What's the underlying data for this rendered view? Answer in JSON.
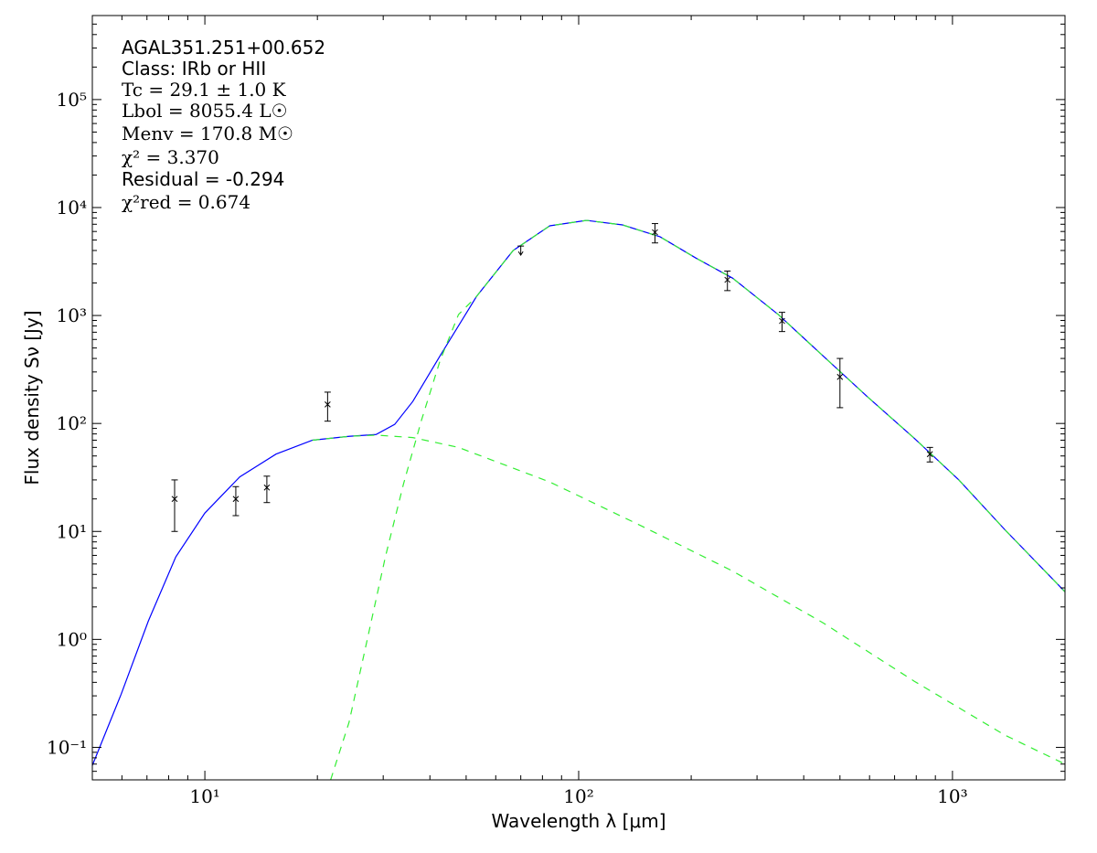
{
  "chart_data": {
    "type": "sed",
    "xlabel": "Wavelength λ [μm]",
    "ylabel": "Flux density Sν [Jy]",
    "annotations": [
      "AGAL351.251+00.652",
      "Class: IRb or HII",
      "Tc = 29.1 ± 1.0 K",
      "Lbol = 8055.4 L☉",
      "Menv = 170.8 M☉",
      "χ² = 3.370",
      "Residual = -0.294",
      "χ²red = 0.674"
    ],
    "xscale": "log",
    "yscale": "log",
    "xlim": [
      5,
      2000
    ],
    "ylim": [
      0.05,
      600000
    ],
    "xticks": [
      {
        "value": 10,
        "label": "10¹"
      },
      {
        "value": 100,
        "label": "10²"
      },
      {
        "value": 1000,
        "label": "10³"
      }
    ],
    "yticks": [
      {
        "value": 0.1,
        "label": "10⁻¹"
      },
      {
        "value": 1,
        "label": "10⁰"
      },
      {
        "value": 10,
        "label": "10¹"
      },
      {
        "value": 100,
        "label": "10²"
      },
      {
        "value": 1000,
        "label": "10³"
      },
      {
        "value": 10000,
        "label": "10⁴"
      },
      {
        "value": 100000,
        "label": "10⁵"
      }
    ],
    "xminorticks": [
      6,
      7,
      8,
      9,
      20,
      30,
      40,
      50,
      60,
      70,
      80,
      90,
      200,
      300,
      400,
      500,
      600,
      700,
      800,
      900
    ],
    "yminorticks": [
      0.06,
      0.07,
      0.08,
      0.09,
      0.2,
      0.3,
      0.4,
      0.5,
      0.6,
      0.7,
      0.8,
      0.9,
      2,
      3,
      4,
      5,
      6,
      7,
      8,
      9,
      20,
      30,
      40,
      50,
      60,
      70,
      80,
      90,
      200,
      300,
      400,
      500,
      600,
      700,
      800,
      900,
      2000,
      3000,
      4000,
      5000,
      6000,
      7000,
      8000,
      9000,
      20000,
      30000,
      40000,
      50000,
      60000,
      70000,
      80000,
      90000,
      200000,
      300000,
      400000,
      500000
    ],
    "series": [
      {
        "color": "#0000ff",
        "style": "solid",
        "x": [
          5,
          5.97,
          7.06,
          8.36,
          10,
          12.4,
          15.5,
          19.4,
          24.3,
          28.7,
          32.2,
          36,
          42.6,
          53.3,
          66.8,
          83.7,
          105,
          131,
          165,
          206,
          258,
          342,
          450,
          593,
          790,
          1040,
          1380,
          2000
        ],
        "values": [
          0.068,
          0.31,
          1.48,
          5.8,
          14.8,
          32,
          52,
          70,
          76,
          79,
          98,
          160,
          424,
          1500,
          4000,
          6770,
          7600,
          6900,
          5360,
          3400,
          2220,
          1020,
          424,
          176,
          73,
          30,
          10.4,
          2.76
        ]
      },
      {
        "color": "#33ee33",
        "style": "dashed",
        "x": [
          19.4,
          24.3,
          28.7,
          36,
          47.7,
          83.7,
          146,
          258,
          451,
          790,
          1380,
          2000
        ],
        "values": [
          70,
          76,
          78,
          74,
          60,
          28.7,
          11.4,
          4.3,
          1.42,
          0.41,
          0.13,
          0.07
        ]
      },
      {
        "color": "#33ee33",
        "style": "dashed",
        "x": [
          21.7,
          24.3,
          27.2,
          30.4,
          34,
          38,
          42.6,
          47.7,
          53.3,
          66.8,
          83.7,
          105,
          131,
          165,
          206,
          258,
          342,
          450,
          593,
          790,
          1040,
          1380,
          2000
        ],
        "values": [
          0.05,
          0.17,
          1,
          5.8,
          27.6,
          108,
          384,
          1020,
          1500,
          4000,
          6770,
          7600,
          6900,
          5360,
          3400,
          2220,
          1020,
          424,
          176,
          73,
          30,
          10.4,
          2.76
        ]
      }
    ],
    "points": {
      "color": "#000000",
      "x": [
        8.3,
        12.1,
        14.65,
        21.3,
        160,
        250,
        350,
        500,
        870
      ],
      "values": [
        20,
        20,
        25.5,
        150,
        5900,
        2140,
        890,
        270,
        52
      ],
      "errors": [
        10,
        6,
        7,
        45,
        1200,
        440,
        180,
        130,
        8
      ]
    },
    "upper_limits": {
      "color": "#000000",
      "x": [
        70
      ],
      "values": [
        4400
      ]
    }
  }
}
